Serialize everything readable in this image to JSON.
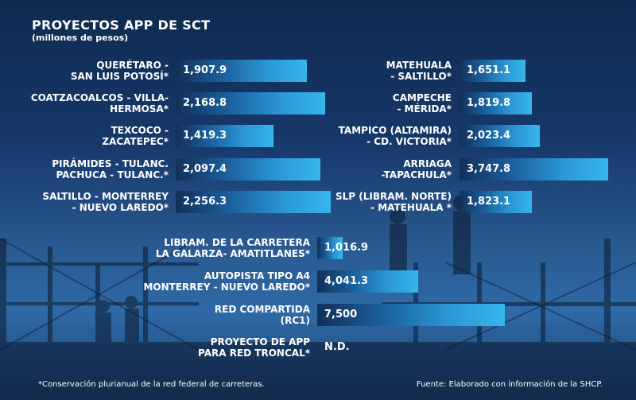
{
  "title": "PROYECTOS APP DE SCT",
  "subtitle": "(millones de pesos)",
  "footnote": "*Conservación plurianual de la red federal de carreteras.",
  "source": "Fuente: Elaborado con información de la SHCP.",
  "colors": {
    "bar_start": "#12305a",
    "bar_end": "#36b6ec",
    "background": "#1c3f70"
  },
  "chart_data": [
    {
      "type": "bar",
      "orientation": "horizontal",
      "categories": [
        "QUERÉTARO -\nSAN LUIS POTOSÍ*",
        "COATZACOALCOS - VILLA-\nHERMOSA*",
        "TEXCOCO -\nZACATEPEC*",
        "PIRÁMIDES - TULANC.\nPACHUCA - TULANC.*",
        "SALTILLO - MONTERREY\n- NUEVO LAREDO*"
      ],
      "values": [
        1907.9,
        2168.8,
        1419.3,
        2097.4,
        2256.3
      ],
      "value_labels": [
        "1,907.9",
        "2,168.8",
        "1,419.3",
        "2,097.4",
        "2,256.3"
      ]
    },
    {
      "type": "bar",
      "orientation": "horizontal",
      "categories": [
        "MATEHUALA\n- SALTILLO*",
        "CAMPECHE\n- MÉRIDA*",
        "TAMPICO (ALTAMIRA)\n- CD. VICTORIA*",
        "ARRIAGA\n-TAPACHULA*",
        "SLP (LIBRAM. NORTE)\n- MATEHUALA *"
      ],
      "values": [
        1651.1,
        1819.8,
        2023.4,
        3747.8,
        1823.1
      ],
      "value_labels": [
        "1,651.1",
        "1,819.8",
        "2,023.4",
        "3,747.8",
        "1,823.1"
      ]
    },
    {
      "type": "bar",
      "orientation": "horizontal",
      "categories": [
        "LIBRAM. DE LA CARRETERA\nLA GALARZA- AMATITLANES*",
        "AUTOPISTA TIPO A4\nMONTERREY - NUEVO LAREDO*",
        "RED COMPARTIDA\n(RC1)",
        "PROYECTO DE APP\nPARA RED TRONCAL*"
      ],
      "values": [
        1016.9,
        4041.3,
        7500,
        null
      ],
      "value_labels": [
        "1,016.9",
        "4,041.3",
        "7,500",
        "N.D."
      ]
    }
  ]
}
